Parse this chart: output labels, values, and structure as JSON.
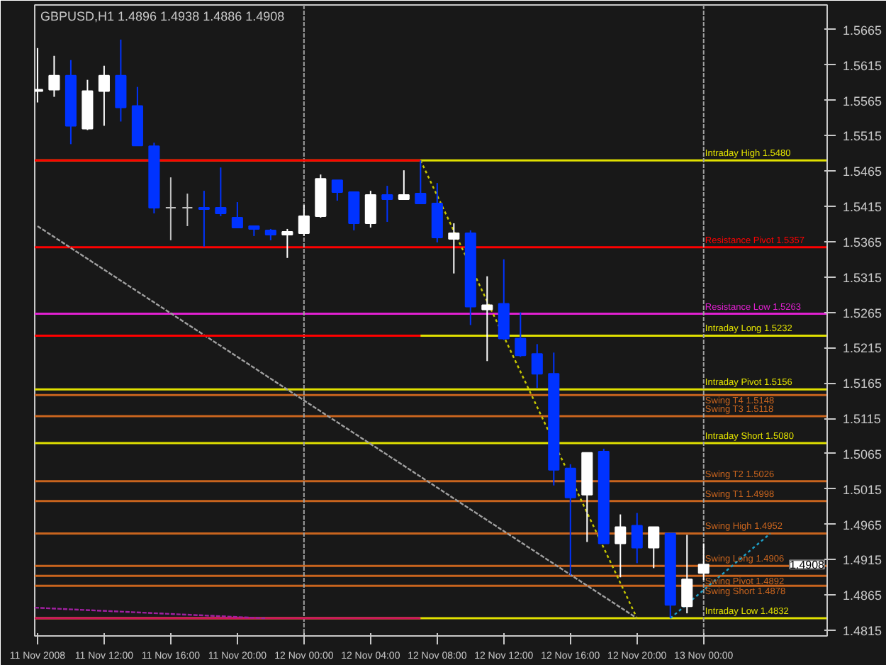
{
  "chart_data": {
    "type": "candlestick",
    "title": "GBPUSD,H1 1.4896 1.4938 1.4886 1.4908",
    "x": [
      "2008-11-11T08:00",
      "2008-11-11T09:00",
      "2008-11-11T10:00",
      "2008-11-11T11:00",
      "2008-11-11T12:00",
      "2008-11-11T13:00",
      "2008-11-11T14:00",
      "2008-11-11T15:00",
      "2008-11-11T16:00",
      "2008-11-11T17:00",
      "2008-11-11T18:00",
      "2008-11-11T19:00",
      "2008-11-11T20:00",
      "2008-11-11T21:00",
      "2008-11-11T22:00",
      "2008-11-11T23:00",
      "2008-11-12T00:00",
      "2008-11-12T01:00",
      "2008-11-12T02:00",
      "2008-11-12T03:00",
      "2008-11-12T04:00",
      "2008-11-12T05:00",
      "2008-11-12T06:00",
      "2008-11-12T07:00",
      "2008-11-12T08:00",
      "2008-11-12T09:00",
      "2008-11-12T10:00",
      "2008-11-12T11:00",
      "2008-11-12T12:00",
      "2008-11-12T13:00",
      "2008-11-12T14:00",
      "2008-11-12T15:00",
      "2008-11-12T16:00",
      "2008-11-12T17:00",
      "2008-11-12T18:00",
      "2008-11-12T19:00",
      "2008-11-12T20:00",
      "2008-11-12T21:00",
      "2008-11-12T22:00",
      "2008-11-12T23:00",
      "2008-11-13T00:00"
    ],
    "ohlc": [
      [
        1.5578,
        1.5639,
        1.5562,
        1.558
      ],
      [
        1.558,
        1.5628,
        1.557,
        1.56
      ],
      [
        1.56,
        1.5622,
        1.5503,
        1.5529
      ],
      [
        1.5525,
        1.5594,
        1.5523,
        1.5578
      ],
      [
        1.5578,
        1.5614,
        1.5529,
        1.56
      ],
      [
        1.56,
        1.5651,
        1.5535,
        1.5555
      ],
      [
        1.5557,
        1.5584,
        1.5501,
        1.5501
      ],
      [
        1.55,
        1.5505,
        1.5405,
        1.5413
      ],
      [
        1.5413,
        1.5456,
        1.5367,
        1.5413
      ],
      [
        1.5413,
        1.5433,
        1.5387,
        1.5413
      ],
      [
        1.5413,
        1.5437,
        1.5358,
        1.5411
      ],
      [
        1.5413,
        1.547,
        1.5401,
        1.5405
      ],
      [
        1.5399,
        1.5421,
        1.5385,
        1.5385
      ],
      [
        1.5387,
        1.5387,
        1.5373,
        1.5383
      ],
      [
        1.5381,
        1.5383,
        1.5367,
        1.5375
      ],
      [
        1.5375,
        1.5383,
        1.5342,
        1.5379
      ],
      [
        1.5377,
        1.5417,
        1.5373,
        1.5401
      ],
      [
        1.5401,
        1.546,
        1.5399,
        1.5454
      ],
      [
        1.5452,
        1.5452,
        1.5423,
        1.5435
      ],
      [
        1.5435,
        1.5435,
        1.5381,
        1.5391
      ],
      [
        1.5391,
        1.5437,
        1.5385,
        1.5431
      ],
      [
        1.5431,
        1.5444,
        1.5393,
        1.5425
      ],
      [
        1.5425,
        1.5466,
        1.5425,
        1.5431
      ],
      [
        1.5433,
        1.548,
        1.5419,
        1.5419
      ],
      [
        1.5419,
        1.5448,
        1.5364,
        1.5371
      ],
      [
        1.5369,
        1.5391,
        1.532,
        1.5377
      ],
      [
        1.5377,
        1.5381,
        1.5247,
        1.5273
      ],
      [
        1.5269,
        1.5316,
        1.5196,
        1.5275
      ],
      [
        1.5277,
        1.534,
        1.5226,
        1.5228
      ],
      [
        1.5228,
        1.5265,
        1.5202,
        1.5204
      ],
      [
        1.5206,
        1.522,
        1.5158,
        1.5178
      ],
      [
        1.5178,
        1.5208,
        1.502,
        1.5042
      ],
      [
        1.5044,
        1.505,
        1.4893,
        1.5003
      ],
      [
        1.5007,
        1.5066,
        1.494,
        1.5066
      ],
      [
        1.5068,
        1.5072,
        1.4938,
        1.4938
      ],
      [
        1.4938,
        1.4979,
        1.489,
        1.4961
      ],
      [
        1.4963,
        1.4981,
        1.491,
        1.4932
      ],
      [
        1.4932,
        1.4961,
        1.4903,
        1.4961
      ],
      [
        1.4952,
        1.4952,
        1.4832,
        1.4851
      ],
      [
        1.4849,
        1.495,
        1.4839,
        1.4887
      ],
      [
        1.4896,
        1.4938,
        1.4886,
        1.4908
      ]
    ],
    "colors": [
      "#ffffff",
      "#ffffff",
      "#0033ff",
      "#ffffff",
      "#ffffff",
      "#0033ff",
      "#0033ff",
      "#0033ff",
      "#c0c0c0",
      "#c0c0c0",
      "#0033ff",
      "#0033ff",
      "#0033ff",
      "#0033ff",
      "#0033ff",
      "#ffffff",
      "#ffffff",
      "#ffffff",
      "#0033ff",
      "#0033ff",
      "#ffffff",
      "#0033ff",
      "#ffffff",
      "#0033ff",
      "#0033ff",
      "#ffffff",
      "#0033ff",
      "#ffffff",
      "#0033ff",
      "#0033ff",
      "#0033ff",
      "#0033ff",
      "#0033ff",
      "#ffffff",
      "#0033ff",
      "#ffffff",
      "#0033ff",
      "#ffffff",
      "#0033ff",
      "#ffffff",
      "#ffffff"
    ],
    "series": [
      {
        "type": "line",
        "color": "#a0a0a0",
        "line_style": "dashed",
        "x": [
          "2008-11-11T08:00",
          "2008-11-12T20:00"
        ],
        "values": [
          1.5387,
          1.4832
        ]
      },
      {
        "type": "line",
        "color": "#c8c800",
        "line_style": "dotted",
        "x": [
          "2008-11-12T07:00",
          "2008-11-12T20:00"
        ],
        "values": [
          1.548,
          1.4832
        ]
      },
      {
        "type": "line",
        "color": "#1ea0c8",
        "line_style": "dotted",
        "x": [
          "2008-11-12T22:00",
          "2008-11-13T04:00"
        ],
        "values": [
          1.4832,
          1.4952
        ]
      },
      {
        "type": "line",
        "color": "#ff0000",
        "line_style": "solid",
        "x": [
          "2008-11-11T07:50",
          "2008-11-12T07:00"
        ],
        "values": [
          1.548,
          1.548
        ]
      },
      {
        "type": "line",
        "color": "#ff0000",
        "line_style": "solid",
        "x": [
          "2008-11-11T07:50",
          "2008-11-12T07:00"
        ],
        "values": [
          1.5232,
          1.5232
        ]
      },
      {
        "type": "line",
        "color": "#d01060",
        "line_style": "solid",
        "x": [
          "2008-11-11T07:50",
          "2008-11-12T07:00"
        ],
        "values": [
          1.4832,
          1.4832
        ]
      },
      {
        "type": "line",
        "color": "#a020a0",
        "line_style": "dashed",
        "x": [
          "2008-11-11T07:50",
          "2008-11-11T21:40"
        ],
        "values": [
          1.4847,
          1.4832
        ]
      }
    ],
    "ref_lines": [
      {
        "axis": "y",
        "value": 1.548,
        "label": "Intraday High 1.5480",
        "color": "#e0e000"
      },
      {
        "axis": "y",
        "value": 1.5357,
        "label": "Resistance Pivot 1.5357",
        "color": "#ff0000"
      },
      {
        "axis": "y",
        "value": 1.5263,
        "label": "Resistance Low 1.5263",
        "color": "#e020d0"
      },
      {
        "axis": "y",
        "value": 1.5232,
        "label": "Intraday Long 1.5232",
        "color": "#e0e000"
      },
      {
        "axis": "y",
        "value": 1.5156,
        "label": "Intraday Pivot 1.5156",
        "color": "#e0e000"
      },
      {
        "axis": "y",
        "value": 1.5148,
        "label": "Swing T4 1.5148",
        "color": "#c8641e"
      },
      {
        "axis": "y",
        "value": 1.5118,
        "label": "Swing T3 1.5118",
        "color": "#c8641e"
      },
      {
        "axis": "y",
        "value": 1.508,
        "label": "Intraday Short 1.5080",
        "color": "#e0e000"
      },
      {
        "axis": "y",
        "value": 1.5026,
        "label": "Swing T2 1.5026",
        "color": "#c8641e"
      },
      {
        "axis": "y",
        "value": 1.4998,
        "label": "Swing T1 1.4998",
        "color": "#c8641e"
      },
      {
        "axis": "y",
        "value": 1.4952,
        "label": "Swing High 1.4952",
        "color": "#c8641e"
      },
      {
        "axis": "y",
        "value": 1.4906,
        "label": "Swing Long 1.4906",
        "color": "#c8641e"
      },
      {
        "axis": "y",
        "value": 1.4892,
        "label": "Swing Pivot 1.4892",
        "color": "#c8641e"
      },
      {
        "axis": "y",
        "value": 1.4878,
        "label": "Swing Short 1.4878",
        "color": "#c8641e"
      },
      {
        "axis": "y",
        "value": 1.4832,
        "label": "Intraday Low 1.4832",
        "color": "#e0e000"
      },
      {
        "axis": "x",
        "value": "2008-11-12T00:00",
        "label": null,
        "color": "#a0a0a0",
        "line_style": "dashed"
      },
      {
        "axis": "x",
        "value": "2008-11-13T00:00",
        "label": null,
        "color": "#a0a0a0",
        "line_style": "dashed"
      }
    ],
    "annotations": [
      "1.4908"
    ],
    "xlim": [
      "2008-11-11T07:50",
      "2008-11-13T07:25"
    ],
    "ylim": [
      1.4807,
      1.57
    ],
    "xticks": [
      {
        "value": "2008-11-11T08:00",
        "label": "11 Nov 2008"
      },
      {
        "value": "2008-11-11T12:00",
        "label": "11 Nov 12:00"
      },
      {
        "value": "2008-11-11T16:00",
        "label": "11 Nov 16:00"
      },
      {
        "value": "2008-11-11T20:00",
        "label": "11 Nov 20:00"
      },
      {
        "value": "2008-11-12T00:00",
        "label": "12 Nov 00:00"
      },
      {
        "value": "2008-11-12T04:00",
        "label": "12 Nov 04:00"
      },
      {
        "value": "2008-11-12T08:00",
        "label": "12 Nov 08:00"
      },
      {
        "value": "2008-11-12T12:00",
        "label": "12 Nov 12:00"
      },
      {
        "value": "2008-11-12T16:00",
        "label": "12 Nov 16:00"
      },
      {
        "value": "2008-11-12T20:00",
        "label": "12 Nov 20:00"
      },
      {
        "value": "2008-11-13T00:00",
        "label": "13 Nov 00:00"
      }
    ],
    "yticks": [
      {
        "value": 1.4815,
        "label": "1.4815"
      },
      {
        "value": 1.4865,
        "label": "1.4865"
      },
      {
        "value": 1.4915,
        "label": "1.4915"
      },
      {
        "value": 1.4965,
        "label": "1.4965"
      },
      {
        "value": 1.5015,
        "label": "1.5015"
      },
      {
        "value": 1.5065,
        "label": "1.5065"
      },
      {
        "value": 1.5115,
        "label": "1.5115"
      },
      {
        "value": 1.5165,
        "label": "1.5165"
      },
      {
        "value": 1.5215,
        "label": "1.5215"
      },
      {
        "value": 1.5265,
        "label": "1.5265"
      },
      {
        "value": 1.5315,
        "label": "1.5315"
      },
      {
        "value": 1.5365,
        "label": "1.5365"
      },
      {
        "value": 1.5415,
        "label": "1.5415"
      },
      {
        "value": 1.5465,
        "label": "1.5465"
      },
      {
        "value": 1.5515,
        "label": "1.5515"
      },
      {
        "value": 1.5565,
        "label": "1.5565"
      },
      {
        "value": 1.5615,
        "label": "1.5615"
      },
      {
        "value": 1.5665,
        "label": "1.5665"
      }
    ],
    "grid": false
  }
}
